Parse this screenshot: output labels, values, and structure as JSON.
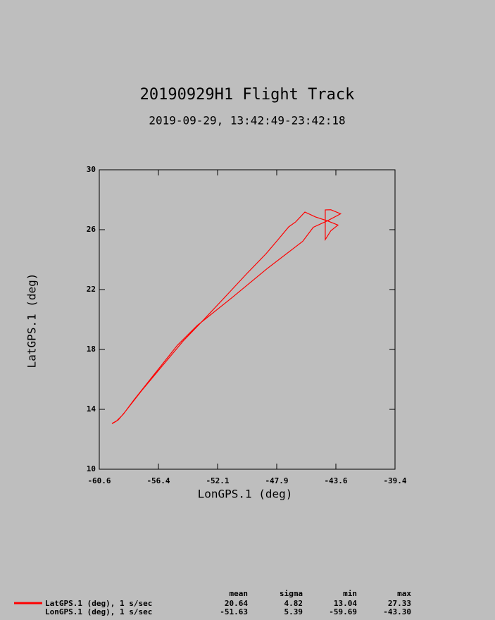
{
  "chart_data": {
    "type": "line",
    "title": "20190929H1 Flight Track",
    "subtitle": "2019-09-29, 13:42:49-23:42:18",
    "x_label": "LonGPS.1 (deg)",
    "y_label": "LatGPS.1 (deg)",
    "xlim": [
      -60.6,
      -39.4
    ],
    "ylim": [
      10,
      30
    ],
    "xticks": [
      -60.6,
      {
        "value": -56.36,
        "label": "-56.4"
      },
      {
        "value": -52.12,
        "label": "-52.1"
      },
      {
        "value": -47.88,
        "label": "-47.9"
      },
      {
        "value": -43.64,
        "label": "-43.6"
      },
      -39.4
    ],
    "yticks": [
      10,
      14,
      18,
      22,
      26,
      30
    ],
    "x": [
      -59.69,
      -59.24,
      -58.73,
      -57.62,
      -56.11,
      -54.59,
      -53.08,
      -51.56,
      -50.05,
      -48.64,
      -47.78,
      -47.02,
      -46.52,
      -45.86,
      -45.1,
      -44.25,
      -43.49,
      -44.0,
      -44.4,
      -44.4,
      -44.0,
      -43.3,
      -44.25,
      -45.26,
      -46.02,
      -48.54,
      -51.06,
      -53.58,
      -55.0,
      -56.61,
      -58.13,
      -58.88,
      -59.39,
      -59.69
    ],
    "series": [
      {
        "name": "LatGPS.1 (deg), 1 s/sec",
        "color": "#ff0000",
        "values": [
          13.06,
          13.29,
          13.86,
          15.18,
          16.87,
          18.56,
          20.02,
          21.53,
          23.04,
          24.4,
          25.34,
          26.19,
          26.52,
          27.18,
          26.85,
          26.59,
          26.31,
          25.93,
          25.34,
          27.32,
          27.33,
          27.06,
          26.59,
          26.16,
          25.22,
          23.42,
          21.48,
          19.6,
          18.28,
          16.4,
          14.61,
          13.67,
          13.2,
          13.04
        ]
      }
    ],
    "summary": {
      "columns": [
        "mean",
        "sigma",
        "min",
        "max"
      ],
      "rows": [
        {
          "stats": [
            "20.64",
            "4.82",
            "13.04",
            "27.33"
          ]
        },
        {
          "name": "LonGPS.1 (deg), 1 s/sec",
          "stats": [
            "-51.63",
            "5.39",
            "-59.69",
            "-43.30"
          ]
        }
      ]
    }
  }
}
